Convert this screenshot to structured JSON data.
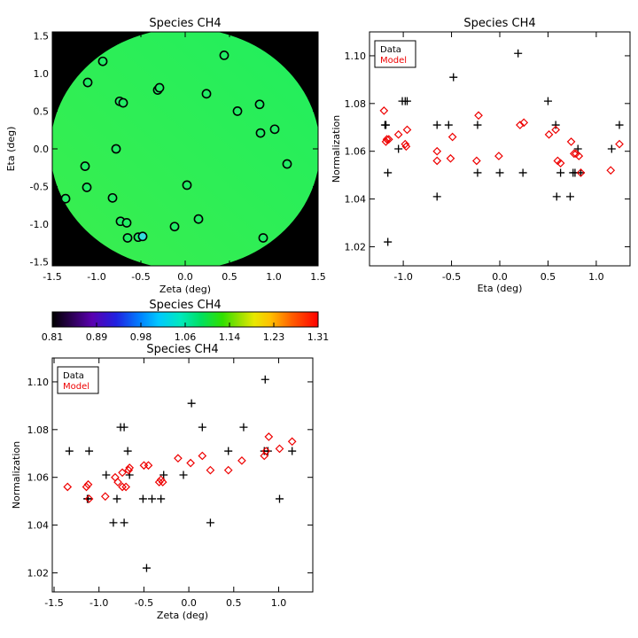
{
  "chart_data": [
    {
      "type": "scatter",
      "panel": "map",
      "title": "Species CH4",
      "xlabel": "Zeta (deg)",
      "ylabel": "Eta (deg)",
      "xlim": [
        -1.5,
        1.5
      ],
      "ylim": [
        -1.55,
        1.55
      ],
      "x_ticks": [
        "-1.5",
        "-1.0",
        "-0.5",
        "0.0",
        "0.5",
        "1.0",
        "1.5"
      ],
      "y_ticks": [
        "-1.5",
        "-1.0",
        "-0.5",
        "0.0",
        "0.5",
        "1.0",
        "1.5"
      ],
      "background": "black",
      "field_color": "#21ee5e",
      "field_color_2": "#3aee4e",
      "marker_color": "#22ee66",
      "marker_color_low": "#33dddd",
      "points": [
        {
          "x": -1.35,
          "y": -0.66,
          "v": 1.06
        },
        {
          "x": -1.13,
          "y": -0.23,
          "v": 1.06
        },
        {
          "x": -1.11,
          "y": -0.51,
          "v": 1.06
        },
        {
          "x": -1.1,
          "y": 0.88,
          "v": 1.06
        },
        {
          "x": -0.93,
          "y": 1.16,
          "v": 1.06
        },
        {
          "x": -0.82,
          "y": -0.65,
          "v": 1.06
        },
        {
          "x": -0.78,
          "y": 0.0,
          "v": 1.06
        },
        {
          "x": -0.74,
          "y": 0.63,
          "v": 1.06
        },
        {
          "x": -0.73,
          "y": -0.96,
          "v": 1.06
        },
        {
          "x": -0.7,
          "y": 0.61,
          "v": 1.06
        },
        {
          "x": -0.66,
          "y": -0.98,
          "v": 1.06
        },
        {
          "x": -0.65,
          "y": -1.18,
          "v": 1.06
        },
        {
          "x": -0.53,
          "y": -1.17,
          "v": 1.06
        },
        {
          "x": -0.48,
          "y": -1.16,
          "v": 1.02
        },
        {
          "x": -0.31,
          "y": 0.78,
          "v": 1.06
        },
        {
          "x": -0.29,
          "y": 0.81,
          "v": 1.06
        },
        {
          "x": -0.12,
          "y": -1.03,
          "v": 1.06
        },
        {
          "x": 0.02,
          "y": -0.48,
          "v": 1.06
        },
        {
          "x": 0.15,
          "y": -0.93,
          "v": 1.06
        },
        {
          "x": 0.24,
          "y": 0.73,
          "v": 1.06
        },
        {
          "x": 0.44,
          "y": 1.24,
          "v": 1.06
        },
        {
          "x": 0.59,
          "y": 0.5,
          "v": 1.06
        },
        {
          "x": 0.84,
          "y": 0.59,
          "v": 1.06
        },
        {
          "x": 0.85,
          "y": 0.21,
          "v": 1.06
        },
        {
          "x": 0.88,
          "y": -1.18,
          "v": 1.06
        },
        {
          "x": 1.01,
          "y": 0.26,
          "v": 1.06
        },
        {
          "x": 1.15,
          "y": -0.2,
          "v": 1.06
        }
      ]
    },
    {
      "type": "scatter",
      "panel": "colorbar",
      "title": "Species CH4",
      "tick_labels": [
        "0.81",
        "0.89",
        "0.98",
        "1.06",
        "1.14",
        "1.23",
        "1.31"
      ],
      "range": [
        0.81,
        1.31
      ]
    },
    {
      "type": "scatter",
      "panel": "eta",
      "title": "Species CH4",
      "xlabel": "Eta (deg)",
      "ylabel": "Normalization",
      "xlim": [
        -1.35,
        1.35
      ],
      "ylim": [
        1.012,
        1.11
      ],
      "x_ticks": [
        "-1.0",
        "-0.5",
        "0.0",
        "0.5",
        "1.0"
      ],
      "y_ticks": [
        "1.02",
        "1.04",
        "1.06",
        "1.08",
        "1.10"
      ],
      "legend_placement": "top-left",
      "series": [
        {
          "name": "Data",
          "color": "#000000",
          "marker": "plus",
          "points": [
            [
              -1.19,
              1.071
            ],
            [
              -1.18,
              1.071
            ],
            [
              -1.16,
              1.051
            ],
            [
              -1.16,
              1.022
            ],
            [
              -1.05,
              1.061
            ],
            [
              -1.01,
              1.081
            ],
            [
              -0.98,
              1.081
            ],
            [
              -0.96,
              1.081
            ],
            [
              -0.65,
              1.071
            ],
            [
              -0.65,
              1.041
            ],
            [
              -0.53,
              1.071
            ],
            [
              -0.48,
              1.091
            ],
            [
              -0.23,
              1.071
            ],
            [
              -0.23,
              1.051
            ],
            [
              0.0,
              1.051
            ],
            [
              0.19,
              1.101
            ],
            [
              0.24,
              1.051
            ],
            [
              0.5,
              1.081
            ],
            [
              0.58,
              1.071
            ],
            [
              0.59,
              1.041
            ],
            [
              0.63,
              1.051
            ],
            [
              0.73,
              1.041
            ],
            [
              0.76,
              1.051
            ],
            [
              0.78,
              1.051
            ],
            [
              0.81,
              1.061
            ],
            [
              0.84,
              1.051
            ],
            [
              1.16,
              1.061
            ],
            [
              1.24,
              1.071
            ]
          ]
        },
        {
          "name": "Model",
          "color": "#ee0000",
          "marker": "diamond",
          "points": [
            [
              -1.2,
              1.077
            ],
            [
              -1.18,
              1.064
            ],
            [
              -1.17,
              1.065
            ],
            [
              -1.15,
              1.065
            ],
            [
              -1.05,
              1.067
            ],
            [
              -0.98,
              1.063
            ],
            [
              -0.97,
              1.062
            ],
            [
              -0.96,
              1.069
            ],
            [
              -0.65,
              1.06
            ],
            [
              -0.65,
              1.056
            ],
            [
              -0.51,
              1.057
            ],
            [
              -0.49,
              1.066
            ],
            [
              -0.24,
              1.056
            ],
            [
              -0.22,
              1.075
            ],
            [
              -0.01,
              1.058
            ],
            [
              0.21,
              1.071
            ],
            [
              0.25,
              1.072
            ],
            [
              0.51,
              1.067
            ],
            [
              0.58,
              1.069
            ],
            [
              0.6,
              1.056
            ],
            [
              0.63,
              1.055
            ],
            [
              0.74,
              1.064
            ],
            [
              0.77,
              1.059
            ],
            [
              0.79,
              1.059
            ],
            [
              0.82,
              1.058
            ],
            [
              0.84,
              1.051
            ],
            [
              1.15,
              1.052
            ],
            [
              1.24,
              1.063
            ]
          ]
        }
      ],
      "legend": [
        "Data",
        "Model"
      ]
    },
    {
      "type": "scatter",
      "panel": "zeta",
      "title": "Species CH4",
      "xlabel": "Zeta (deg)",
      "ylabel": "Normalization",
      "xlim": [
        -1.52,
        1.38
      ],
      "ylim": [
        1.012,
        1.11
      ],
      "x_ticks": [
        "-1.5",
        "-1.0",
        "-0.5",
        "0.0",
        "0.5",
        "1.0"
      ],
      "y_ticks": [
        "1.02",
        "1.04",
        "1.06",
        "1.08",
        "1.10"
      ],
      "legend_placement": "top-left",
      "series": [
        {
          "name": "Data",
          "color": "#000000",
          "marker": "plus",
          "points": [
            [
              -1.33,
              1.071
            ],
            [
              -1.13,
              1.051
            ],
            [
              -1.12,
              1.051
            ],
            [
              -1.11,
              1.071
            ],
            [
              -0.92,
              1.061
            ],
            [
              -0.84,
              1.041
            ],
            [
              -0.8,
              1.051
            ],
            [
              -0.76,
              1.081
            ],
            [
              -0.72,
              1.041
            ],
            [
              -0.72,
              1.081
            ],
            [
              -0.68,
              1.071
            ],
            [
              -0.66,
              1.061
            ],
            [
              -0.51,
              1.051
            ],
            [
              -0.47,
              1.022
            ],
            [
              -0.41,
              1.051
            ],
            [
              -0.31,
              1.051
            ],
            [
              -0.28,
              1.061
            ],
            [
              -0.06,
              1.061
            ],
            [
              0.03,
              1.091
            ],
            [
              0.15,
              1.081
            ],
            [
              0.24,
              1.041
            ],
            [
              0.44,
              1.071
            ],
            [
              0.61,
              1.081
            ],
            [
              0.84,
              1.071
            ],
            [
              0.85,
              1.101
            ],
            [
              0.88,
              1.071
            ],
            [
              1.01,
              1.051
            ],
            [
              1.15,
              1.071
            ]
          ]
        },
        {
          "name": "Model",
          "color": "#ee0000",
          "marker": "diamond",
          "points": [
            [
              -1.35,
              1.056
            ],
            [
              -1.14,
              1.056
            ],
            [
              -1.12,
              1.057
            ],
            [
              -1.11,
              1.051
            ],
            [
              -0.93,
              1.052
            ],
            [
              -0.82,
              1.06
            ],
            [
              -0.79,
              1.058
            ],
            [
              -0.74,
              1.056
            ],
            [
              -0.74,
              1.062
            ],
            [
              -0.7,
              1.056
            ],
            [
              -0.67,
              1.063
            ],
            [
              -0.66,
              1.064
            ],
            [
              -0.5,
              1.065
            ],
            [
              -0.45,
              1.065
            ],
            [
              -0.33,
              1.058
            ],
            [
              -0.31,
              1.059
            ],
            [
              -0.29,
              1.058
            ],
            [
              -0.12,
              1.068
            ],
            [
              0.02,
              1.066
            ],
            [
              0.15,
              1.069
            ],
            [
              0.24,
              1.063
            ],
            [
              0.44,
              1.063
            ],
            [
              0.59,
              1.067
            ],
            [
              0.84,
              1.069
            ],
            [
              0.86,
              1.071
            ],
            [
              0.89,
              1.077
            ],
            [
              1.01,
              1.072
            ],
            [
              1.15,
              1.075
            ]
          ]
        }
      ],
      "legend": [
        "Data",
        "Model"
      ]
    }
  ]
}
